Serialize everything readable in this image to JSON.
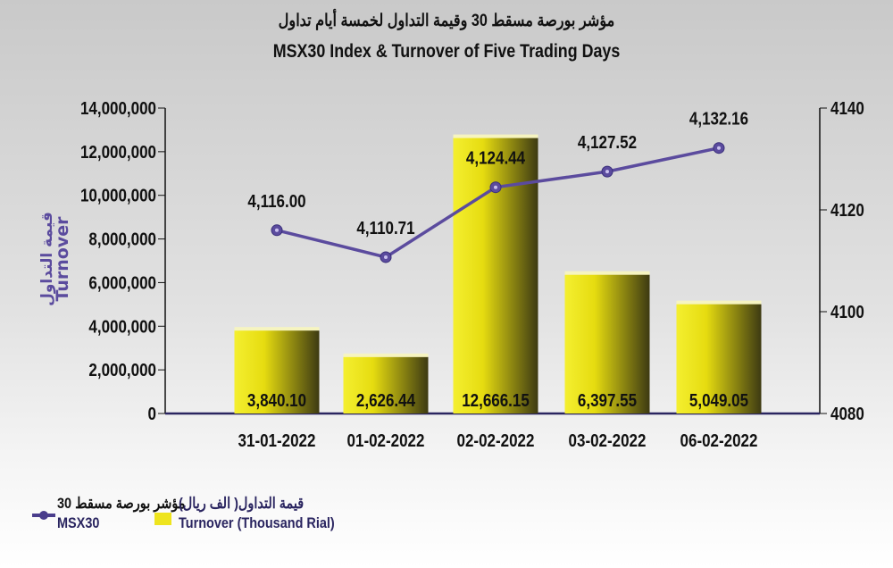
{
  "chart_data": {
    "type": "bar+line",
    "title_ar": "مؤشر بورصة مسقط 30 وقيمة التداول لخمسة أيام تداول",
    "title": "MSX30 Index & Turnover of Five Trading Days",
    "ylabel_ar": "قيمة التداول",
    "ylabel": "Turnover",
    "categories": [
      "31-01-2022",
      "01-02-2022",
      "02-02-2022",
      "03-02-2022",
      "06-02-2022"
    ],
    "left_axis": {
      "range": [
        0,
        14000000
      ],
      "ticks": [
        "0",
        "2,000,000",
        "4,000,000",
        "6,000,000",
        "8,000,000",
        "10,000,000",
        "12,000,000",
        "14,000,000"
      ]
    },
    "right_axis": {
      "range": [
        4080,
        4140
      ],
      "ticks": [
        "4080",
        "4100",
        "4120",
        "4140"
      ]
    },
    "series": [
      {
        "name": "Turnover (Thousand Rial)",
        "name_ar": "قيمة التداول( الف ريال)",
        "type": "bar",
        "color": "#e8e000",
        "values": [
          3840100,
          2626440,
          12666150,
          6397550,
          5049050
        ],
        "labels": [
          "3,840.10",
          "2,626.44",
          "12,666.15",
          "6,397.55",
          "5,049.05"
        ]
      },
      {
        "name": "MSX30",
        "name_ar": "مؤشر بورصة مسقط 30",
        "type": "line",
        "axis": "right",
        "color": "#5b4b9e",
        "values": [
          4116.0,
          4110.71,
          4124.44,
          4127.52,
          4132.16
        ],
        "labels": [
          "4,116.00",
          "4,110.71",
          "4,124.44",
          "4,127.52",
          "4,132.16"
        ]
      }
    ],
    "grid": false,
    "legend": "bottom-left"
  }
}
